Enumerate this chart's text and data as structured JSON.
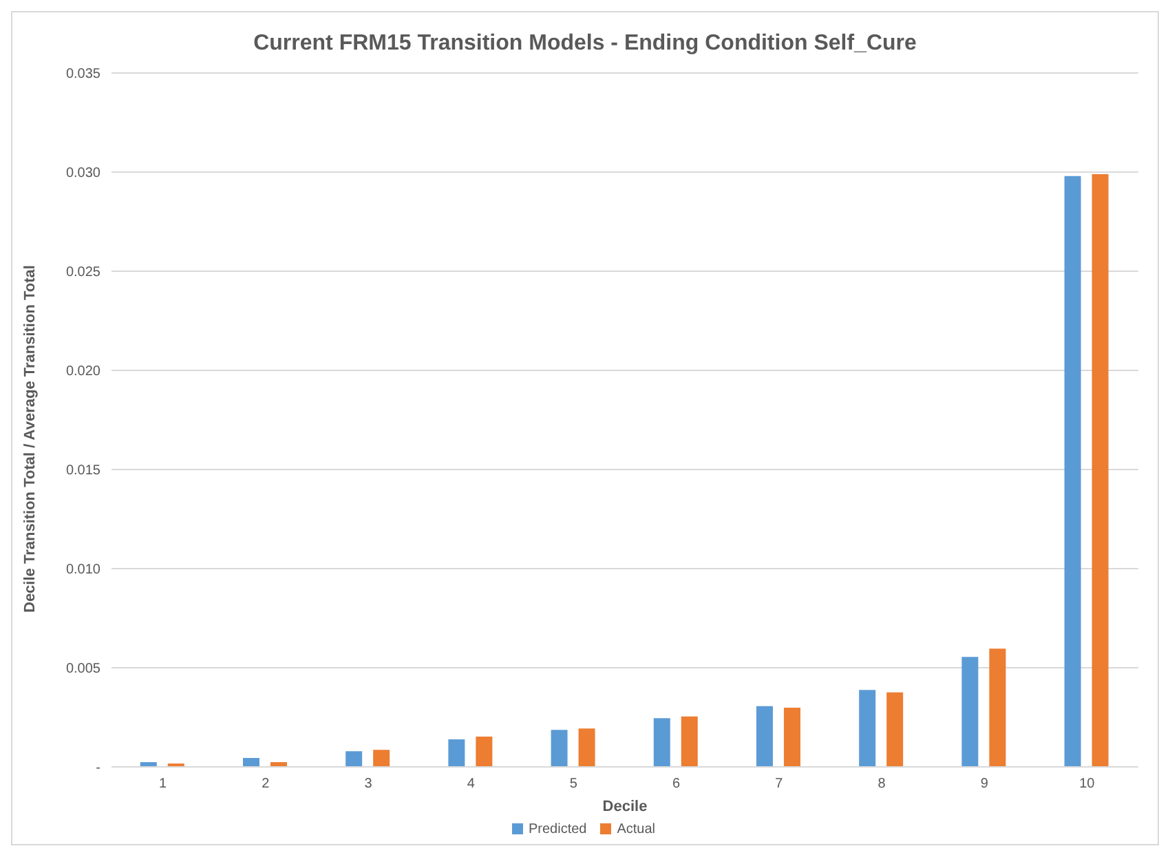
{
  "chart_data": {
    "type": "bar",
    "title": "Current FRM15 Transition Models -  Ending Condition Self_Cure",
    "xlabel": "Decile",
    "ylabel": "Decile Transition Total / Average Transition Total",
    "categories": [
      "1",
      "2",
      "3",
      "4",
      "5",
      "6",
      "7",
      "8",
      "9",
      "10"
    ],
    "series": [
      {
        "name": "Predicted",
        "color": "#5b9bd5",
        "values": [
          0.00024,
          0.00045,
          0.00079,
          0.00139,
          0.00187,
          0.00246,
          0.00306,
          0.00388,
          0.00555,
          0.0298
        ]
      },
      {
        "name": "Actual",
        "color": "#ed7d31",
        "values": [
          0.00017,
          0.00024,
          0.00086,
          0.00153,
          0.00194,
          0.00254,
          0.00299,
          0.00376,
          0.00596,
          0.0299
        ]
      }
    ],
    "ylim": [
      0,
      0.035
    ],
    "yticks": [
      {
        "value": 0,
        "label": "-"
      },
      0.005,
      {
        "value": 0.01,
        "label": "0.010"
      },
      0.015,
      {
        "value": 0.02,
        "label": "0.020"
      },
      0.025,
      {
        "value": 0.03,
        "label": "0.030"
      },
      0.035
    ],
    "grid": "y",
    "legend": "bottom"
  }
}
